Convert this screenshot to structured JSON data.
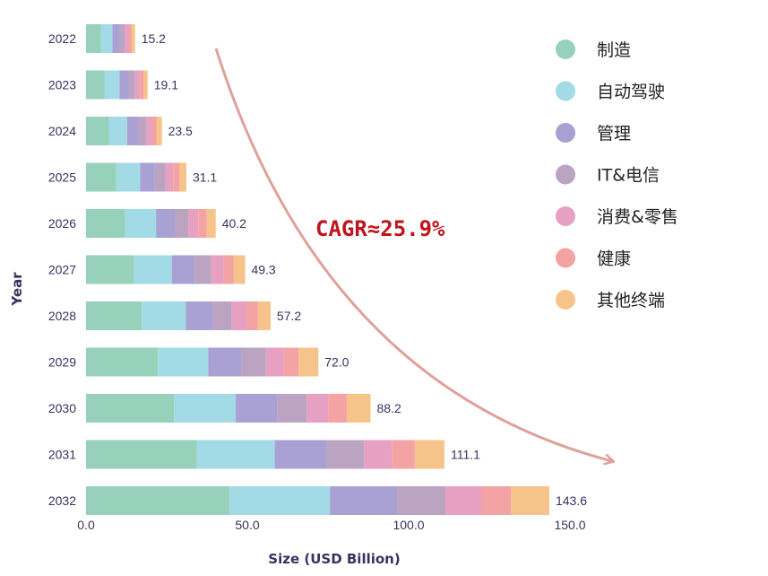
{
  "chart_data": {
    "type": "bar",
    "orientation": "horizontal",
    "stacked": true,
    "xlabel": "Size (USD Billion)",
    "ylabel": "Year",
    "xlim": [
      0,
      150
    ],
    "xticks": [
      "0.0",
      "50.0",
      "100.0",
      "150.0"
    ],
    "categories": [
      "2022",
      "2023",
      "2024",
      "2025",
      "2026",
      "2027",
      "2028",
      "2029",
      "2030",
      "2031",
      "2032"
    ],
    "totals": [
      "15.2",
      "19.1",
      "23.5",
      "31.1",
      "40.2",
      "49.3",
      "57.2",
      "72.0",
      "88.2",
      "111.1",
      "143.6"
    ],
    "series": [
      {
        "name": "制造",
        "color": "#97d1bb",
        "values": [
          4.6,
          5.8,
          7.1,
          9.4,
          12.1,
          14.9,
          17.3,
          22.3,
          27.3,
          34.4,
          44.5
        ]
      },
      {
        "name": "自动驾驶",
        "color": "#a2dbe5",
        "values": [
          3.6,
          4.6,
          5.6,
          7.4,
          9.6,
          11.7,
          13.6,
          15.6,
          19.1,
          24.1,
          31.1
        ]
      },
      {
        "name": "管理",
        "color": "#a9a0d3",
        "values": [
          2.2,
          2.8,
          3.4,
          4.5,
          5.8,
          7.1,
          8.3,
          10.4,
          12.8,
          16.1,
          20.8
        ]
      },
      {
        "name": "IT&电信",
        "color": "#bba4c2",
        "values": [
          1.6,
          2.0,
          2.5,
          3.3,
          4.2,
          5.1,
          6.0,
          7.5,
          9.2,
          11.6,
          15.0
        ]
      },
      {
        "name": "消费&零售",
        "color": "#e6a0c2",
        "values": [
          1.2,
          1.5,
          1.8,
          2.4,
          3.1,
          3.8,
          4.4,
          5.5,
          6.8,
          8.6,
          11.1
        ]
      },
      {
        "name": "健康",
        "color": "#f3a3a4",
        "values": [
          1.0,
          1.2,
          1.5,
          2.0,
          2.6,
          3.2,
          3.7,
          4.6,
          5.7,
          7.1,
          9.2
        ]
      },
      {
        "name": "其他终端",
        "color": "#f6c48a",
        "values": [
          1.0,
          1.2,
          1.6,
          2.1,
          2.8,
          3.5,
          3.9,
          6.1,
          7.3,
          9.2,
          11.9
        ]
      }
    ],
    "annotation": {
      "text": "CAGR≈25.9%",
      "color": "#c0151a",
      "arrow_color": "#e0a19c"
    },
    "legend_position": "top-right",
    "grid": false
  }
}
